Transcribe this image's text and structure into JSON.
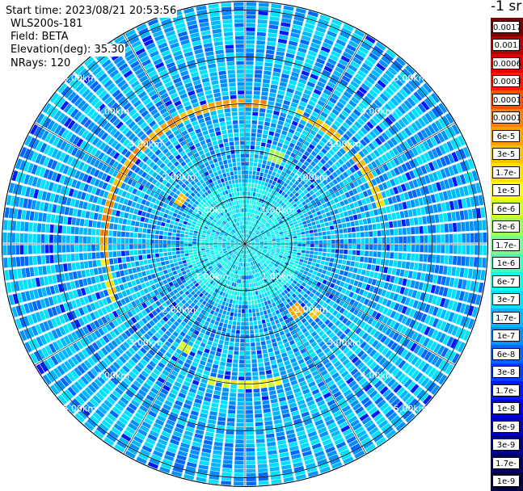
{
  "header": {
    "start_time": "Start time: 2023/08/21 20:53:56",
    "instrument": "WLS200s-181",
    "field": "Field: BETA",
    "elevation": "Elevation(deg): 35.30",
    "nrays": "NRays: 120"
  },
  "chart_data": {
    "type": "heatmap",
    "projection": "polar",
    "units": "-1 sr",
    "range_rings_km": [
      1,
      2,
      3,
      4,
      5
    ],
    "ring_labels": [
      "1.00km",
      "2.00km",
      "3.00km",
      "4.00km",
      "5.00km"
    ],
    "max_range_km": 5.2,
    "n_rays": 120,
    "spokes_deg": 30,
    "background_value": "1e-7",
    "colorbar": {
      "labels": [
        "0.0017",
        "0.001",
        "0.0006",
        "0.0003",
        "0.00017",
        "0.0001",
        "6e-5",
        "3e-5",
        "1.7e-5",
        "1e-5",
        "6e-6",
        "3e-6",
        "1.7e-6",
        "1e-6",
        "6e-7",
        "3e-7",
        "1.7e-7",
        "1e-7",
        "6e-8",
        "3e-8",
        "1.7e-8",
        "1e-8",
        "6e-9",
        "3e-9",
        "1.7e-9",
        "1e-9"
      ],
      "colors": [
        "#7a0000",
        "#b30000",
        "#e00000",
        "#ff1a00",
        "#ff5000",
        "#ff8000",
        "#ffa000",
        "#ffc000",
        "#ffe000",
        "#ffff00",
        "#d0ff20",
        "#a0ff50",
        "#70ff90",
        "#40ffc0",
        "#10ffe8",
        "#00e0ff",
        "#00b8ff",
        "#0090ff",
        "#0068ff",
        "#0040ff",
        "#0018ff",
        "#0000e0",
        "#0000b8",
        "#000090",
        "#000068",
        "#000040"
      ]
    },
    "feature_ring": {
      "radius_km": 3.0,
      "arcs_deg": [
        [
          -95,
          10
        ],
        [
          20,
          75
        ],
        [
          165,
          195
        ],
        [
          245,
          265
        ]
      ],
      "values": [
        "6e-5",
        "3e-5",
        "1e-5",
        "1.7e-5"
      ]
    },
    "inner_patches": [
      {
        "az_deg": 135,
        "range_km": 2.05,
        "value": "3e-5"
      },
      {
        "az_deg": 142,
        "range_km": 1.75,
        "value": "6e-5"
      },
      {
        "az_deg": -55,
        "range_km": 1.6,
        "value": "3e-5"
      },
      {
        "az_deg": 20,
        "range_km": 1.95,
        "value": "3e-6"
      },
      {
        "az_deg": 210,
        "range_km": 2.5,
        "value": "6e-6"
      }
    ]
  }
}
